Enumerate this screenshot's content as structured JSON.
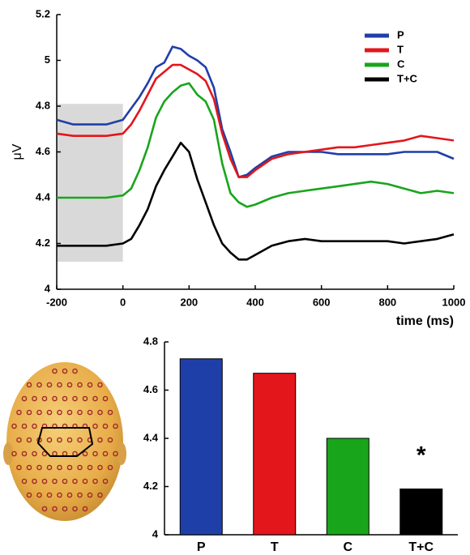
{
  "chart_data": [
    {
      "type": "line",
      "ylabel": "μV",
      "xlabel": "time (ms)",
      "x": [
        -200,
        -150,
        -100,
        -50,
        0,
        25,
        50,
        75,
        100,
        125,
        150,
        175,
        200,
        225,
        250,
        275,
        300,
        325,
        350,
        375,
        400,
        450,
        500,
        550,
        600,
        650,
        700,
        750,
        800,
        850,
        900,
        950,
        1000
      ],
      "series": [
        {
          "name": "P",
          "color": "#1f3fa8",
          "values": [
            4.74,
            4.72,
            4.72,
            4.72,
            4.74,
            4.79,
            4.84,
            4.9,
            4.97,
            4.99,
            5.06,
            5.05,
            5.02,
            5.0,
            4.97,
            4.88,
            4.7,
            4.6,
            4.49,
            4.5,
            4.53,
            4.58,
            4.6,
            4.6,
            4.6,
            4.59,
            4.59,
            4.59,
            4.59,
            4.6,
            4.6,
            4.6,
            4.57
          ]
        },
        {
          "name": "T",
          "color": "#e3161b",
          "values": [
            4.68,
            4.67,
            4.67,
            4.67,
            4.68,
            4.72,
            4.78,
            4.85,
            4.92,
            4.95,
            4.98,
            4.98,
            4.96,
            4.94,
            4.91,
            4.83,
            4.68,
            4.57,
            4.49,
            4.49,
            4.52,
            4.57,
            4.59,
            4.6,
            4.61,
            4.62,
            4.62,
            4.63,
            4.64,
            4.65,
            4.67,
            4.66,
            4.65
          ]
        },
        {
          "name": "C",
          "color": "#18a51b",
          "values": [
            4.4,
            4.4,
            4.4,
            4.4,
            4.41,
            4.44,
            4.52,
            4.62,
            4.75,
            4.82,
            4.86,
            4.89,
            4.9,
            4.85,
            4.82,
            4.74,
            4.55,
            4.42,
            4.38,
            4.36,
            4.37,
            4.4,
            4.42,
            4.43,
            4.44,
            4.45,
            4.46,
            4.47,
            4.46,
            4.44,
            4.42,
            4.43,
            4.42
          ]
        },
        {
          "name": "T+C",
          "color": "#000000",
          "values": [
            4.19,
            4.19,
            4.19,
            4.19,
            4.2,
            4.22,
            4.28,
            4.35,
            4.45,
            4.52,
            4.58,
            4.64,
            4.6,
            4.48,
            4.38,
            4.28,
            4.2,
            4.16,
            4.13,
            4.13,
            4.15,
            4.19,
            4.21,
            4.22,
            4.21,
            4.21,
            4.21,
            4.21,
            4.21,
            4.2,
            4.21,
            4.22,
            4.24
          ]
        }
      ],
      "shade": {
        "x": [
          -200,
          0
        ],
        "y": [
          4.12,
          4.81
        ],
        "color": "#d9d9d9"
      },
      "xlim": [
        -200,
        1000
      ],
      "xticks": [
        -200,
        0,
        200,
        400,
        600,
        800,
        1000
      ],
      "ylim": [
        4,
        5.2
      ],
      "yticks": [
        4,
        4.2,
        4.4,
        4.6,
        4.8,
        5,
        5.2
      ],
      "legend": "upper right"
    },
    {
      "type": "bar",
      "categories": [
        "P",
        "T",
        "C",
        "T+C"
      ],
      "values": [
        4.73,
        4.67,
        4.4,
        4.19
      ],
      "colors": [
        "#1f3fa8",
        "#e3161b",
        "#18a51b",
        "#000000"
      ],
      "ylim": [
        4,
        4.8
      ],
      "yticks": [
        4,
        4.2,
        4.4,
        4.6,
        4.8
      ],
      "annotation": "*"
    }
  ]
}
